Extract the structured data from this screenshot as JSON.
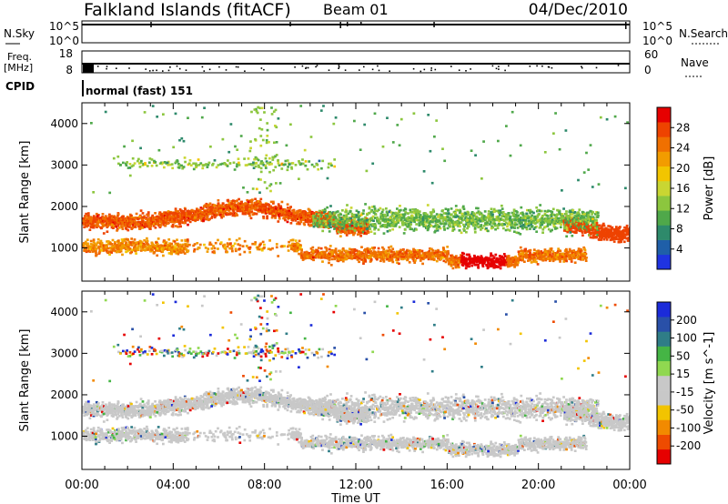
{
  "header": {
    "station": "Falkland Islands (fitACF)",
    "beam": "Beam 01",
    "date": "04/Dec/2010"
  },
  "strips": {
    "nsky_label": "N.Sky",
    "nsky_ticks": [
      "10^5",
      "10^0"
    ],
    "nsearch_label": "N.Search",
    "nsearch_ticks": [
      "10^5",
      "10^0"
    ],
    "freq_label": "Freq.",
    "freq_unit": "[MHz]",
    "freq_ticks": [
      "18",
      "8"
    ],
    "nave_label": "Nave",
    "nave_ticks": [
      "60",
      "0"
    ],
    "cpid_label": "CPID",
    "cpid_value": "normal (fast) 151"
  },
  "colors": {
    "power": [
      "#1f33e0",
      "#1f5fa8",
      "#2e8a6b",
      "#4fa84a",
      "#8cc63e",
      "#c9d632",
      "#f2c500",
      "#f29c00",
      "#f07000",
      "#ee4300",
      "#e60000"
    ],
    "velocity": [
      "#1b2bd9",
      "#2950a8",
      "#2f7d87",
      "#45b545",
      "#90d850",
      "#c8c8c8",
      "#c8c8c8",
      "#f2c400",
      "#f28a00",
      "#ee4b00",
      "#e60000"
    ]
  },
  "chart_data": [
    {
      "type": "heatmap",
      "name": "power",
      "ylabel": "Slant Range [km]",
      "ylim": [
        200,
        4500
      ],
      "y_ticks": [
        "1000",
        "2000",
        "3000",
        "4000"
      ],
      "colorbar_label": "Power [dB]",
      "colorbar_range": [
        0,
        32
      ],
      "colorbar_ticks": [
        "4",
        "8",
        "12",
        "16",
        "20",
        "24",
        "28"
      ],
      "xlim_hours": [
        0,
        24
      ],
      "echo_regions": [
        {
          "hours": [
            0,
            12
          ],
          "range_km": [
            1300,
            2100
          ],
          "dominant": "24-32 dB"
        },
        {
          "hours": [
            0,
            9
          ],
          "range_km": [
            700,
            1300
          ],
          "dominant": "20-28 dB"
        },
        {
          "hours": [
            10,
            20
          ],
          "range_km": [
            500,
            1100
          ],
          "dominant": "20-32 dB"
        },
        {
          "hours": [
            12,
            22
          ],
          "range_km": [
            1200,
            2200
          ],
          "dominant": "8-20 dB"
        },
        {
          "hours": [
            22,
            24
          ],
          "range_km": [
            900,
            2000
          ],
          "dominant": "24-32 dB"
        },
        {
          "hours": [
            2,
            11
          ],
          "range_km": [
            2800,
            3300
          ],
          "dominant": "12-24 dB"
        }
      ]
    },
    {
      "type": "heatmap",
      "name": "velocity",
      "ylabel": "Slant Range [km]",
      "ylim": [
        200,
        4500
      ],
      "y_ticks": [
        "1000",
        "2000",
        "3000",
        "4000"
      ],
      "colorbar_label": "Velocity [m s^-1]",
      "colorbar_range": [
        -250,
        250
      ],
      "colorbar_ticks": [
        "200",
        "100",
        "50",
        "15",
        "-15",
        "-50",
        "-100",
        "-200"
      ],
      "xlim_hours": [
        0,
        24
      ],
      "echo_regions": [
        {
          "hours": [
            0,
            24
          ],
          "range_km": [
            600,
            2200
          ],
          "dominant": "-15 to 15 m/s (ground scatter)"
        },
        {
          "hours": [
            2,
            11
          ],
          "range_km": [
            2800,
            3300
          ],
          "dominant": "-50 to 50 m/s"
        }
      ]
    }
  ],
  "x_axis": {
    "label": "Time UT",
    "ticks": [
      "00:00",
      "04:00",
      "08:00",
      "12:00",
      "16:00",
      "20:00",
      "00:00"
    ]
  }
}
